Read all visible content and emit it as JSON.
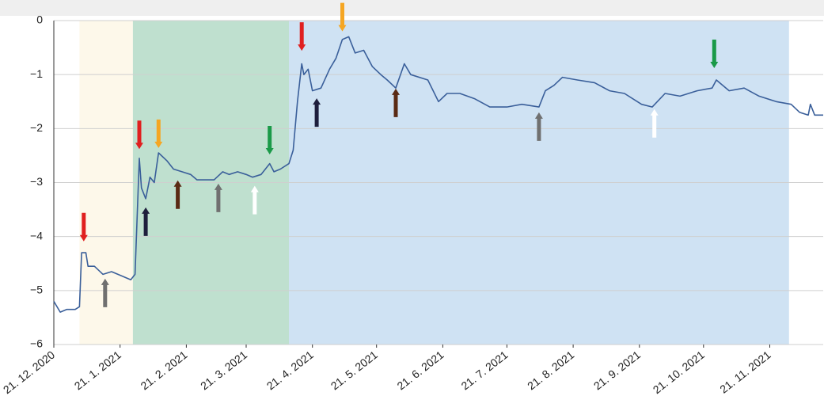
{
  "chart_data": {
    "type": "line",
    "x": [
      0,
      3,
      6,
      10,
      12,
      13,
      15,
      16,
      19,
      23,
      27,
      30,
      36,
      38,
      40,
      41,
      43,
      45,
      47,
      49,
      53,
      56,
      60,
      64,
      67,
      71,
      75,
      79,
      82,
      86,
      90,
      93,
      97,
      101,
      103,
      106,
      110,
      112,
      114,
      116,
      117,
      119,
      121,
      125,
      129,
      132,
      135,
      138,
      141,
      145,
      149,
      153,
      156,
      160,
      164,
      167,
      175,
      180,
      184,
      190,
      197,
      204,
      212,
      219,
      227,
      230,
      234,
      238,
      245,
      253,
      260,
      267,
      275,
      280,
      286,
      293,
      301,
      308,
      310,
      316,
      323,
      330,
      338,
      345,
      349,
      353,
      354,
      356,
      360
    ],
    "series": [
      {
        "color": "#3a5f9a",
        "values": [
          -5.2,
          -5.4,
          -5.35,
          -5.35,
          -5.3,
          -4.3,
          -4.3,
          -4.55,
          -4.55,
          -4.7,
          -4.65,
          -4.7,
          -4.8,
          -4.7,
          -2.55,
          -3.1,
          -3.3,
          -2.9,
          -3.0,
          -2.45,
          -2.6,
          -2.75,
          -2.8,
          -2.85,
          -2.95,
          -2.95,
          -2.95,
          -2.8,
          -2.85,
          -2.8,
          -2.85,
          -2.9,
          -2.85,
          -2.65,
          -2.8,
          -2.75,
          -2.65,
          -2.4,
          -1.5,
          -0.8,
          -1.0,
          -0.9,
          -1.3,
          -1.25,
          -0.9,
          -0.7,
          -0.35,
          -0.3,
          -0.6,
          -0.55,
          -0.85,
          -1.0,
          -1.1,
          -1.25,
          -0.8,
          -1.0,
          -1.1,
          -1.5,
          -1.35,
          -1.35,
          -1.45,
          -1.6,
          -1.6,
          -1.55,
          -1.6,
          -1.3,
          -1.2,
          -1.05,
          -1.1,
          -1.15,
          -1.3,
          -1.35,
          -1.55,
          -1.6,
          -1.35,
          -1.4,
          -1.3,
          -1.25,
          -1.1,
          -1.3,
          -1.25,
          -1.4,
          -1.5,
          -1.55,
          -1.7,
          -1.75,
          -1.55,
          -1.75,
          -1.75
        ]
      }
    ],
    "xlim": [
      0,
      360
    ],
    "xticks": [
      {
        "value": 0,
        "label": "21. 12. 2020"
      },
      {
        "value": 31,
        "label": "21. 1. 2021"
      },
      {
        "value": 62,
        "label": "21. 2. 2021"
      },
      {
        "value": 90,
        "label": "21. 3. 2021"
      },
      {
        "value": 121,
        "label": "21. 4. 2021"
      },
      {
        "value": 151,
        "label": "21. 5. 2021"
      },
      {
        "value": 182,
        "label": "21. 6. 2021"
      },
      {
        "value": 212,
        "label": "21. 7. 2021"
      },
      {
        "value": 243,
        "label": "21. 8. 2021"
      },
      {
        "value": 274,
        "label": "21. 9. 2021"
      },
      {
        "value": 304,
        "label": "21. 10. 2021"
      },
      {
        "value": 335,
        "label": "21. 11. 2021"
      }
    ],
    "ylim": [
      -6,
      0
    ],
    "yticks": [
      0,
      {
        "value": -1,
        "label": "−1"
      },
      {
        "value": -2,
        "label": "−2"
      },
      {
        "value": -3,
        "label": "−3"
      },
      {
        "value": -4,
        "label": "−4"
      },
      {
        "value": -5,
        "label": "−5"
      },
      {
        "value": -6,
        "label": "−6"
      }
    ],
    "grid": true,
    "regions": [
      {
        "start": 12,
        "end": 37,
        "color": "#fdf8ea"
      },
      {
        "start": 37,
        "end": 110,
        "color": "#bfe0cf"
      },
      {
        "start": 110,
        "end": 344,
        "color": "#cfe2f3"
      }
    ],
    "arrows": [
      {
        "x": 14,
        "y": -4.09,
        "dir": "down",
        "color": "#e02020"
      },
      {
        "x": 24,
        "y": -4.78,
        "dir": "up",
        "color": "#707070"
      },
      {
        "x": 40,
        "y": -2.38,
        "dir": "down",
        "color": "#e02020"
      },
      {
        "x": 49,
        "y": -2.36,
        "dir": "down",
        "color": "#f5a623"
      },
      {
        "x": 43,
        "y": -3.46,
        "dir": "up",
        "color": "#1e1e3c"
      },
      {
        "x": 58,
        "y": -2.96,
        "dir": "up",
        "color": "#5a2a14"
      },
      {
        "x": 77,
        "y": -3.02,
        "dir": "up",
        "color": "#707070"
      },
      {
        "x": 94,
        "y": -3.06,
        "dir": "up",
        "color": "#ffffff"
      },
      {
        "x": 101,
        "y": -2.48,
        "dir": "down",
        "color": "#1a9a48"
      },
      {
        "x": 116,
        "y": -0.56,
        "dir": "down",
        "color": "#e02020"
      },
      {
        "x": 135,
        "y": -0.2,
        "dir": "down",
        "color": "#f5a623"
      },
      {
        "x": 123,
        "y": -1.44,
        "dir": "up",
        "color": "#1e1e3c"
      },
      {
        "x": 160,
        "y": -1.26,
        "dir": "up",
        "color": "#5a2a14"
      },
      {
        "x": 227,
        "y": -1.7,
        "dir": "up",
        "color": "#707070"
      },
      {
        "x": 281,
        "y": -1.64,
        "dir": "up",
        "color": "#ffffff"
      },
      {
        "x": 309,
        "y": -0.88,
        "dir": "down",
        "color": "#1a9a48"
      }
    ]
  }
}
